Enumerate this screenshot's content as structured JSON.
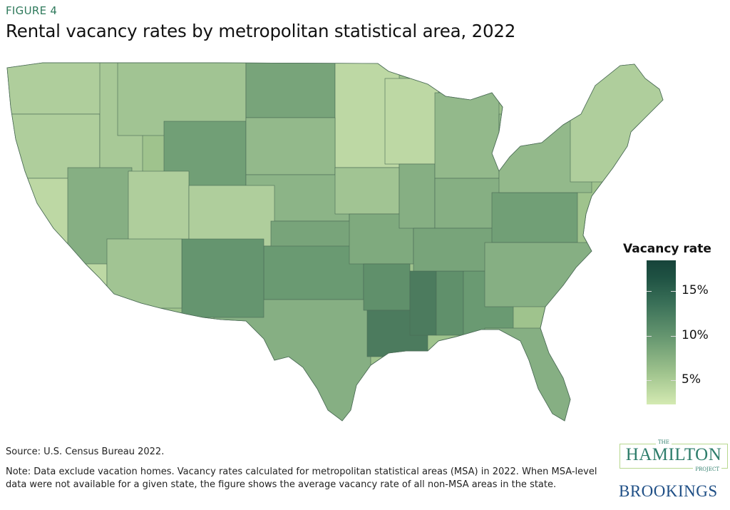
{
  "header": {
    "figure_label": "FIGURE 4",
    "title": "Rental vacancy rates by metropolitan statistical area, 2022"
  },
  "chart_data": {
    "type": "choropleth-map",
    "geography": "Contiguous United States, metropolitan statistical areas and non-MSA state areas",
    "legend": {
      "title": "Vacancy rate",
      "ticks": [
        "5%",
        "10%",
        "15%"
      ],
      "tick_values": [
        5,
        10,
        15
      ],
      "range": [
        2.3,
        18.3
      ],
      "placement": "right",
      "colors": {
        "low": "#d4eab2",
        "mid": "#6a9a72",
        "high": "#17433a"
      }
    },
    "approximate_state_shading": [
      {
        "region": "WA",
        "value": 5
      },
      {
        "region": "OR",
        "value": 5
      },
      {
        "region": "ID",
        "value": 5.5
      },
      {
        "region": "MT",
        "value": 6
      },
      {
        "region": "ND",
        "value": 9
      },
      {
        "region": "MN",
        "value": 4
      },
      {
        "region": "WY",
        "value": 9.5
      },
      {
        "region": "SD",
        "value": 7
      },
      {
        "region": "NE",
        "value": 7.5
      },
      {
        "region": "CA",
        "value": 4
      },
      {
        "region": "NV",
        "value": 8
      },
      {
        "region": "UT",
        "value": 5
      },
      {
        "region": "CO",
        "value": 5
      },
      {
        "region": "KS",
        "value": 9
      },
      {
        "region": "OK",
        "value": 10
      },
      {
        "region": "TX",
        "value": 8
      },
      {
        "region": "NM",
        "value": 10.5
      },
      {
        "region": "AZ",
        "value": 6
      },
      {
        "region": "IA",
        "value": 6
      },
      {
        "region": "MO",
        "value": 8.5
      },
      {
        "region": "AR",
        "value": 11
      },
      {
        "region": "LA",
        "value": 13
      },
      {
        "region": "MS",
        "value": 13
      },
      {
        "region": "AL",
        "value": 11
      },
      {
        "region": "GA",
        "value": 10
      },
      {
        "region": "FL",
        "value": 8
      },
      {
        "region": "WI",
        "value": 4
      },
      {
        "region": "IL",
        "value": 8
      },
      {
        "region": "MI",
        "value": 7
      },
      {
        "region": "IN-OH",
        "value": 8
      },
      {
        "region": "KY-TN",
        "value": 9
      },
      {
        "region": "WV-VA",
        "value": 9.5
      },
      {
        "region": "NC-SC",
        "value": 8
      },
      {
        "region": "PA-NY",
        "value": 7
      },
      {
        "region": "New England",
        "value": 5
      }
    ]
  },
  "footer": {
    "source": "Source: U.S. Census Bureau 2022.",
    "note": "Note: Data exclude vacation homes. Vacancy rates calculated for metropolitan statistical areas (MSA) in 2022. When MSA-level data were not available for a given state, the figure shows the average vacancy rate of all non-MSA areas in the state."
  },
  "logos": {
    "hamilton_the": "THE",
    "hamilton_name": "HAMILTON",
    "hamilton_project": "PROJECT",
    "brookings": "BROOKINGS"
  }
}
